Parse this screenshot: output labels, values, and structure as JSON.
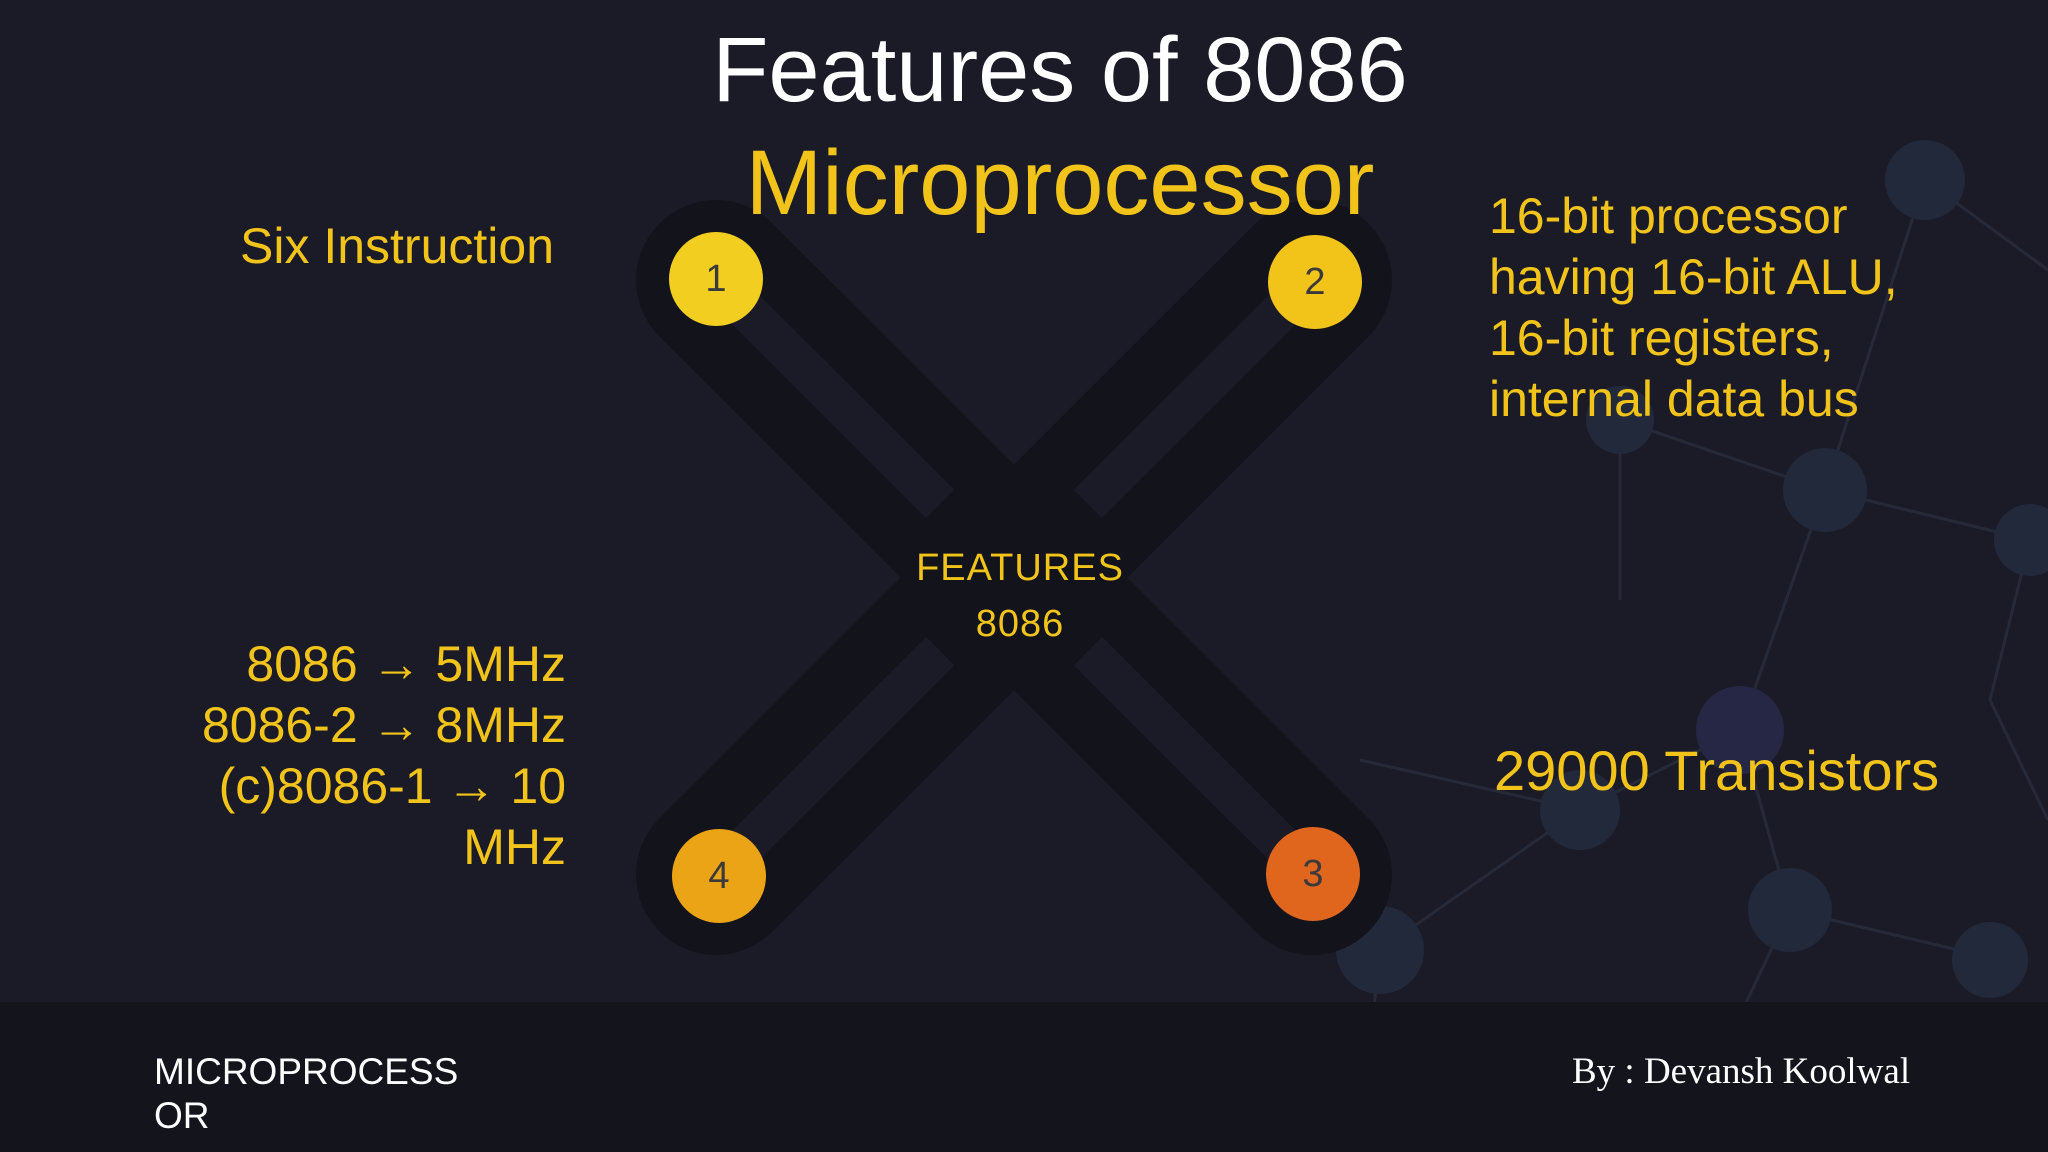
{
  "title": {
    "line1": "Features of 8086",
    "line2": "Microprocessor"
  },
  "center": {
    "line1": "FEATURES",
    "line2": "8086"
  },
  "nodes": [
    {
      "number": "1",
      "color": "#f2ce20"
    },
    {
      "number": "2",
      "color": "#f2c41a"
    },
    {
      "number": "3",
      "color": "#e0661e"
    },
    {
      "number": "4",
      "color": "#eaa416"
    }
  ],
  "features": {
    "f1": "Six Instruction",
    "f2": [
      "16-bit processor",
      "having 16-bit ALU,",
      "16-bit registers,",
      "internal data bus"
    ],
    "f3": "29000 Transistors",
    "f4": [
      "8086 → 5MHz",
      "8086-2 → 8MHz",
      "(c)8086-1 → 10",
      "MHz"
    ]
  },
  "footer": {
    "left": "MICROPROCESSOR",
    "right": "By : Devansh Koolwal"
  },
  "colors": {
    "background": "#1b1b28",
    "accent": "#f2c41a",
    "x_shape": "#13131c",
    "footer": "#14141d"
  }
}
